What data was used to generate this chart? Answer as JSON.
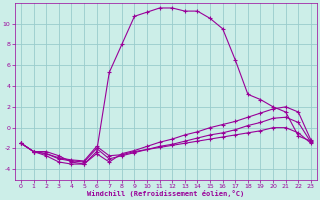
{
  "xlabel": "Windchill (Refroidissement éolien,°C)",
  "bg_color": "#cceee8",
  "line_color": "#990099",
  "grid_color": "#99cccc",
  "xlim": [
    -0.5,
    23.5
  ],
  "ylim": [
    -5,
    12
  ],
  "xticks": [
    0,
    1,
    2,
    3,
    4,
    5,
    6,
    7,
    8,
    9,
    10,
    11,
    12,
    13,
    14,
    15,
    16,
    17,
    18,
    19,
    20,
    21,
    22,
    23
  ],
  "yticks": [
    -4,
    -2,
    0,
    2,
    4,
    6,
    8,
    10
  ],
  "curve_main_x": [
    0,
    1,
    2,
    3,
    4,
    5,
    6,
    7,
    8,
    9,
    10,
    11,
    12,
    13,
    14,
    15,
    16,
    17,
    18,
    19,
    20,
    21,
    22,
    23
  ],
  "curve_main_y": [
    -1.5,
    -2.3,
    -2.3,
    -2.7,
    -3.3,
    -3.5,
    -2.3,
    5.3,
    8.0,
    10.7,
    11.1,
    11.5,
    11.5,
    11.2,
    11.2,
    10.5,
    9.5,
    6.5,
    3.2,
    2.7,
    2.0,
    1.5,
    -0.8,
    -1.3
  ],
  "line1_x": [
    0,
    1,
    2,
    3,
    4,
    5,
    6,
    7,
    8,
    9,
    10,
    11,
    12,
    13,
    14,
    15,
    16,
    17,
    18,
    19,
    20,
    21,
    22,
    23
  ],
  "line1_y": [
    -1.5,
    -2.3,
    -2.7,
    -3.3,
    -3.5,
    -3.5,
    -2.5,
    -3.3,
    -2.5,
    -2.2,
    -1.8,
    -1.4,
    -1.1,
    -0.7,
    -0.4,
    0.0,
    0.3,
    0.6,
    1.0,
    1.4,
    1.8,
    2.0,
    1.5,
    -1.2
  ],
  "line2_x": [
    0,
    1,
    2,
    3,
    4,
    5,
    6,
    7,
    8,
    9,
    10,
    11,
    12,
    13,
    14,
    15,
    16,
    17,
    18,
    19,
    20,
    21,
    22,
    23
  ],
  "line2_y": [
    -1.5,
    -2.3,
    -2.5,
    -3.0,
    -3.2,
    -3.3,
    -2.0,
    -3.0,
    -2.7,
    -2.4,
    -2.1,
    -1.8,
    -1.6,
    -1.3,
    -1.0,
    -0.7,
    -0.5,
    -0.2,
    0.2,
    0.5,
    0.9,
    1.0,
    0.5,
    -1.4
  ],
  "line3_x": [
    0,
    1,
    2,
    3,
    4,
    5,
    6,
    7,
    8,
    9,
    10,
    11,
    12,
    13,
    14,
    15,
    16,
    17,
    18,
    19,
    20,
    21,
    22,
    23
  ],
  "line3_y": [
    -1.5,
    -2.3,
    -2.5,
    -2.9,
    -3.1,
    -3.2,
    -1.8,
    -2.7,
    -2.6,
    -2.3,
    -2.1,
    -1.9,
    -1.7,
    -1.5,
    -1.3,
    -1.1,
    -0.9,
    -0.7,
    -0.5,
    -0.3,
    0.0,
    0.0,
    -0.5,
    -1.5
  ]
}
